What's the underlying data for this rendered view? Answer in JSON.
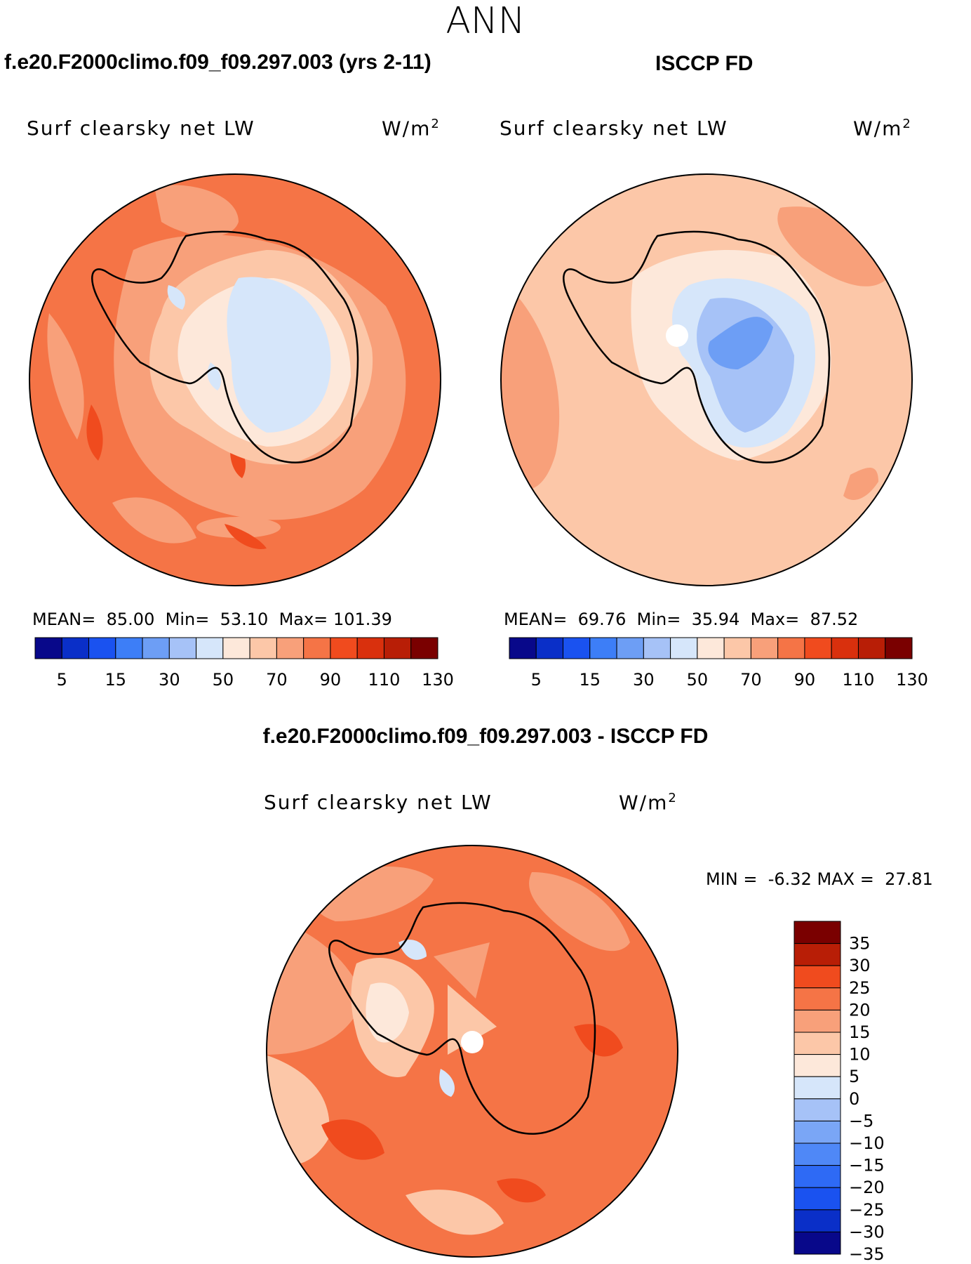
{
  "season": "ANN",
  "panels": [
    {
      "case_title": "f.e20.F2000climo.f09_f09.297.003 (yrs 2-11)",
      "variable": "Surf clearsky net LW",
      "units": "W/m",
      "units_sup": "2",
      "stats": {
        "mean_label": "MEAN=",
        "mean": "85.00",
        "min_label": "Min=",
        "min": "53.10",
        "max_label": "Max=",
        "max": "101.39"
      }
    },
    {
      "case_title": "ISCCP FD",
      "variable": "Surf clearsky net LW",
      "units": "W/m",
      "units_sup": "2",
      "stats": {
        "mean_label": "MEAN=",
        "mean": "69.76",
        "min_label": "Min=",
        "min": "35.94",
        "max_label": "Max=",
        "max": "87.52"
      }
    },
    {
      "case_title": "f.e20.F2000climo.f09_f09.297.003 - ISCCP FD",
      "variable": "Surf clearsky net LW",
      "units": "W/m",
      "units_sup": "2",
      "stats": {
        "min_label": "MIN =",
        "min": "-6.32",
        "max_label": "MAX =",
        "max": "27.81"
      }
    }
  ],
  "colorbar_abs": {
    "colors": [
      "#08088a",
      "#0a2fc8",
      "#1a52f0",
      "#3d7ef7",
      "#6d9ef5",
      "#a6c2f7",
      "#d6e6fa",
      "#fde8da",
      "#fcc7a8",
      "#f8a07a",
      "#f57446",
      "#f04b1e",
      "#d9300d",
      "#b81e06",
      "#7a0000"
    ],
    "tick_labels": [
      "5",
      "15",
      "30",
      "50",
      "70",
      "90",
      "110",
      "130"
    ]
  },
  "colorbar_diff": {
    "colors": [
      "#08088a",
      "#0a2fc8",
      "#1a52f0",
      "#2e6af5",
      "#4f88f7",
      "#7aa6f6",
      "#a6c2f7",
      "#d6e6fa",
      "#fde8da",
      "#fcc7a8",
      "#f8a07a",
      "#f57446",
      "#f04b1e",
      "#b81e06",
      "#7a0000"
    ],
    "tick_labels": [
      "35",
      "30",
      "25",
      "20",
      "15",
      "10",
      "5",
      "0",
      "−5",
      "−10",
      "−15",
      "−20",
      "−25",
      "−30",
      "−35"
    ]
  }
}
